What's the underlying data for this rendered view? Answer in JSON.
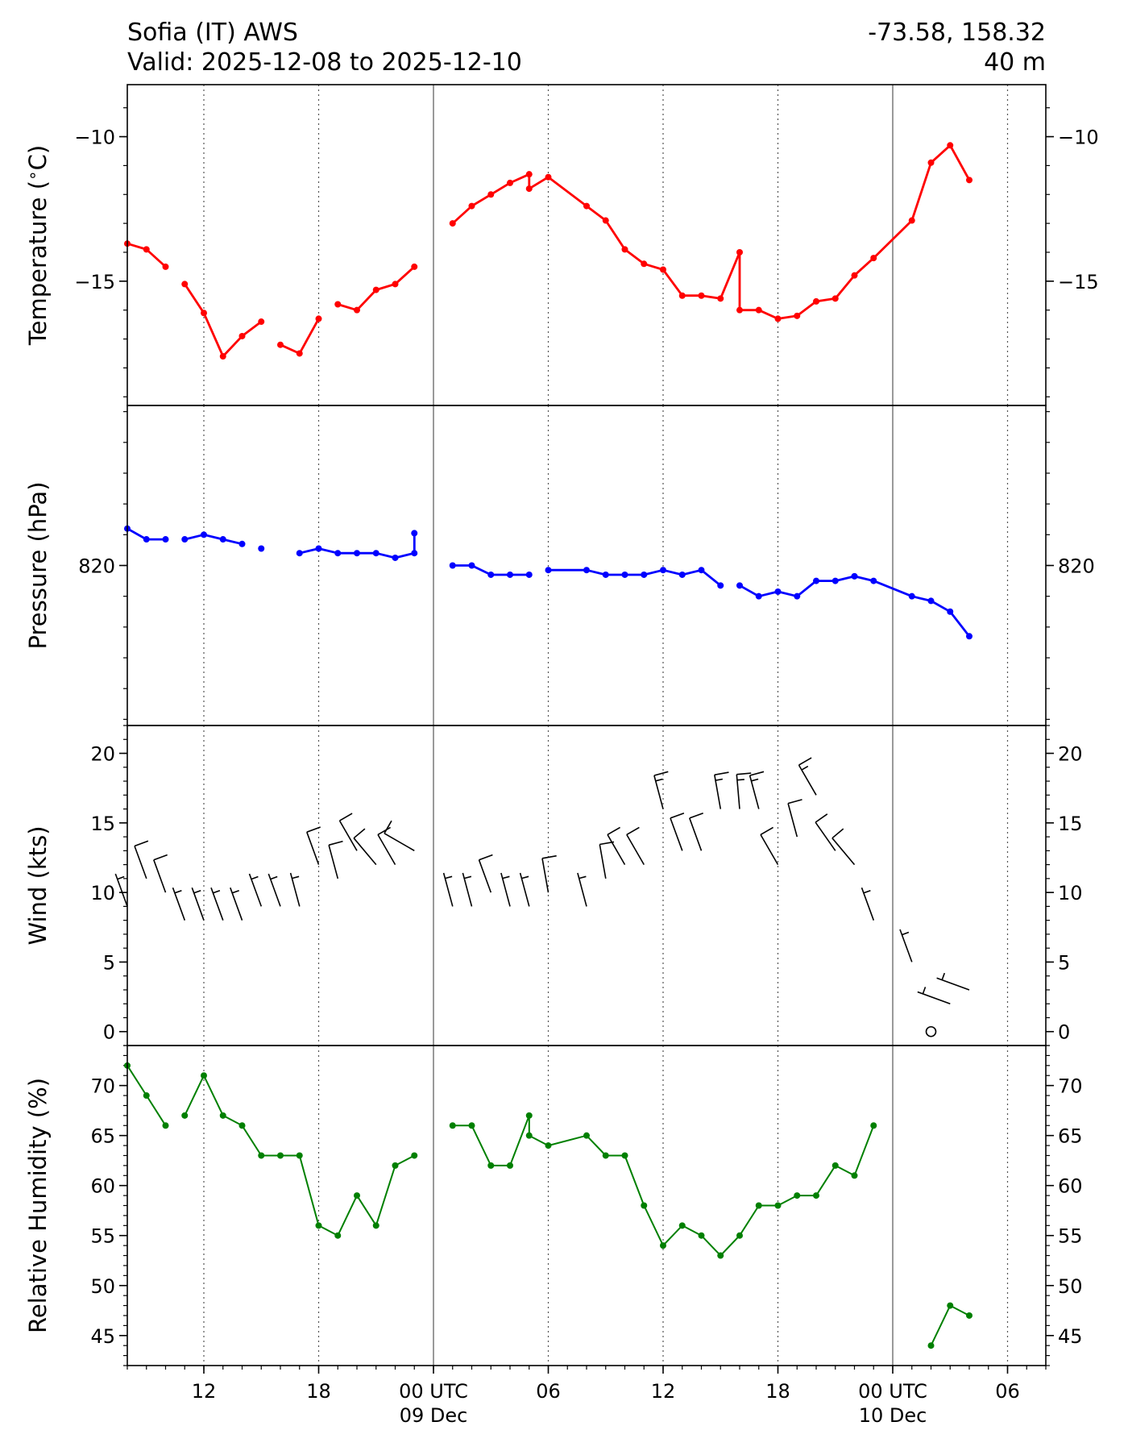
{
  "header": {
    "station": "Sofia (IT) AWS",
    "valid": "Valid: 2025-12-08 to 2025-12-10",
    "coords": "-73.58, 158.32",
    "elevation": "40 m"
  },
  "chart_data": {
    "type": "line",
    "x_axis": {
      "start": "2025-12-08 08:00 UTC",
      "end": "2025-12-10 08:00 UTC",
      "ticks": [
        {
          "time": "2025-12-08 12:00",
          "label": "12",
          "sublabel": ""
        },
        {
          "time": "2025-12-08 18:00",
          "label": "18",
          "sublabel": ""
        },
        {
          "time": "2025-12-09 00:00",
          "label": "00 UTC",
          "sublabel": "09 Dec"
        },
        {
          "time": "2025-12-09 06:00",
          "label": "06",
          "sublabel": ""
        },
        {
          "time": "2025-12-09 12:00",
          "label": "12",
          "sublabel": ""
        },
        {
          "time": "2025-12-09 18:00",
          "label": "18",
          "sublabel": ""
        },
        {
          "time": "2025-12-10 00:00",
          "label": "00 UTC",
          "sublabel": "10 Dec"
        },
        {
          "time": "2025-12-10 06:00",
          "label": "06",
          "sublabel": ""
        }
      ],
      "grid": "dotted at 6-hour ticks, solid at 00 UTC"
    },
    "panels": [
      {
        "name": "temperature",
        "ylabel": "Temperature ($^\\circ$C)",
        "ylim": [
          -19.3,
          -8.2
        ],
        "yticks": [
          -15,
          -10
        ],
        "ytick_labels": [
          "−15",
          "−10"
        ],
        "color": "#ff0000",
        "points": [
          [
            "2025-12-08 08:00",
            -13.7
          ],
          [
            "2025-12-08 09:00",
            -13.9
          ],
          [
            "2025-12-08 10:00",
            -14.5
          ],
          null,
          [
            "2025-12-08 11:00",
            -15.1
          ],
          [
            "2025-12-08 12:00",
            -16.1
          ],
          [
            "2025-12-08 13:00",
            -17.6
          ],
          [
            "2025-12-08 14:00",
            -16.9
          ],
          [
            "2025-12-08 15:00",
            -16.4
          ],
          null,
          [
            "2025-12-08 16:00",
            -17.2
          ],
          [
            "2025-12-08 17:00",
            -17.5
          ],
          [
            "2025-12-08 18:00",
            -16.3
          ],
          null,
          [
            "2025-12-08 19:00",
            -15.8
          ],
          [
            "2025-12-08 20:00",
            -16.0
          ],
          [
            "2025-12-08 21:00",
            -15.3
          ],
          [
            "2025-12-08 22:00",
            -15.1
          ],
          [
            "2025-12-08 23:00",
            -14.5
          ],
          null,
          [
            "2025-12-09 01:00",
            -13.0
          ],
          [
            "2025-12-09 02:00",
            -12.4
          ],
          [
            "2025-12-09 03:00",
            -12.0
          ],
          [
            "2025-12-09 04:00",
            -11.6
          ],
          [
            "2025-12-09 05:00",
            -11.3
          ],
          [
            "2025-12-09 05:00",
            -11.8
          ],
          [
            "2025-12-09 06:00",
            -11.4
          ],
          [
            "2025-12-09 08:00",
            -12.4
          ],
          [
            "2025-12-09 09:00",
            -12.9
          ],
          [
            "2025-12-09 10:00",
            -13.9
          ],
          [
            "2025-12-09 11:00",
            -14.4
          ],
          [
            "2025-12-09 12:00",
            -14.6
          ],
          [
            "2025-12-09 13:00",
            -15.5
          ],
          [
            "2025-12-09 14:00",
            -15.5
          ],
          [
            "2025-12-09 15:00",
            -15.6
          ],
          [
            "2025-12-09 16:00",
            -14.0
          ],
          [
            "2025-12-09 16:00",
            -16.0
          ],
          [
            "2025-12-09 17:00",
            -16.0
          ],
          [
            "2025-12-09 18:00",
            -16.3
          ],
          [
            "2025-12-09 19:00",
            -16.2
          ],
          [
            "2025-12-09 20:00",
            -15.7
          ],
          [
            "2025-12-09 21:00",
            -15.6
          ],
          [
            "2025-12-09 22:00",
            -14.8
          ],
          [
            "2025-12-09 23:00",
            -14.2
          ],
          [
            "2025-12-10 01:00",
            -12.9
          ],
          [
            "2025-12-10 02:00",
            -10.9
          ],
          [
            "2025-12-10 03:00",
            -10.3
          ],
          [
            "2025-12-10 04:00",
            -11.5
          ]
        ]
      },
      {
        "name": "pressure",
        "ylabel": "Pressure (hPa)",
        "ylim": [
          814.8,
          825.2
        ],
        "yticks": [
          820
        ],
        "ytick_labels": [
          "820"
        ],
        "color": "#0000ff",
        "points": [
          [
            "2025-12-08 08:00",
            821.2
          ],
          [
            "2025-12-08 09:00",
            820.85
          ],
          [
            "2025-12-08 10:00",
            820.85
          ],
          null,
          [
            "2025-12-08 11:00",
            820.85
          ],
          [
            "2025-12-08 12:00",
            821.0
          ],
          [
            "2025-12-08 13:00",
            820.85
          ],
          [
            "2025-12-08 14:00",
            820.7
          ],
          null,
          [
            "2025-12-08 15:00",
            820.55
          ],
          null,
          [
            "2025-12-08 17:00",
            820.4
          ],
          [
            "2025-12-08 18:00",
            820.55
          ],
          [
            "2025-12-08 19:00",
            820.4
          ],
          [
            "2025-12-08 20:00",
            820.4
          ],
          [
            "2025-12-08 21:00",
            820.4
          ],
          [
            "2025-12-08 22:00",
            820.25
          ],
          [
            "2025-12-08 23:00",
            820.4
          ],
          [
            "2025-12-08 23:00",
            821.05
          ],
          null,
          [
            "2025-12-09 01:00",
            820.0
          ],
          [
            "2025-12-09 02:00",
            820.0
          ],
          [
            "2025-12-09 03:00",
            819.7
          ],
          [
            "2025-12-09 04:00",
            819.7
          ],
          [
            "2025-12-09 05:00",
            819.7
          ],
          null,
          [
            "2025-12-09 06:00",
            819.85
          ],
          [
            "2025-12-09 08:00",
            819.85
          ],
          [
            "2025-12-09 09:00",
            819.7
          ],
          [
            "2025-12-09 10:00",
            819.7
          ],
          [
            "2025-12-09 11:00",
            819.7
          ],
          [
            "2025-12-09 12:00",
            819.85
          ],
          [
            "2025-12-09 13:00",
            819.7
          ],
          [
            "2025-12-09 14:00",
            819.85
          ],
          [
            "2025-12-09 15:00",
            819.35
          ],
          null,
          [
            "2025-12-09 16:00",
            819.35
          ],
          [
            "2025-12-09 17:00",
            819.0
          ],
          [
            "2025-12-09 18:00",
            819.15
          ],
          [
            "2025-12-09 19:00",
            819.0
          ],
          [
            "2025-12-09 20:00",
            819.5
          ],
          [
            "2025-12-09 21:00",
            819.5
          ],
          [
            "2025-12-09 22:00",
            819.65
          ],
          [
            "2025-12-09 23:00",
            819.5
          ],
          [
            "2025-12-10 01:00",
            819.0
          ],
          [
            "2025-12-10 02:00",
            818.85
          ],
          [
            "2025-12-10 03:00",
            818.5
          ],
          [
            "2025-12-10 04:00",
            817.7
          ]
        ]
      },
      {
        "name": "wind",
        "ylabel": "Wind (kts)",
        "ylim": [
          -1,
          22
        ],
        "yticks": [
          0,
          5,
          10,
          15,
          20
        ],
        "ytick_labels": [
          "0",
          "5",
          "10",
          "15",
          "20"
        ],
        "color": "#000000",
        "barbs": [
          [
            "2025-12-08 08:00",
            9,
            340
          ],
          [
            "2025-12-08 09:00",
            11,
            340
          ],
          [
            "2025-12-08 10:00",
            10,
            340
          ],
          [
            "2025-12-08 11:00",
            8,
            340
          ],
          [
            "2025-12-08 12:00",
            8,
            340
          ],
          [
            "2025-12-08 13:00",
            8,
            340
          ],
          [
            "2025-12-08 14:00",
            8,
            340
          ],
          [
            "2025-12-08 15:00",
            9,
            340
          ],
          [
            "2025-12-08 16:00",
            9,
            340
          ],
          [
            "2025-12-08 17:00",
            9,
            345
          ],
          [
            "2025-12-08 18:00",
            12,
            340
          ],
          [
            "2025-12-08 19:00",
            11,
            345
          ],
          [
            "2025-12-08 20:00",
            13,
            330
          ],
          [
            "2025-12-08 21:00",
            12,
            320
          ],
          [
            "2025-12-08 22:00",
            12,
            330
          ],
          [
            "2025-12-08 23:00",
            13,
            300
          ],
          [
            "2025-12-09 01:00",
            9,
            345
          ],
          [
            "2025-12-09 02:00",
            9,
            345
          ],
          [
            "2025-12-09 03:00",
            10,
            340
          ],
          [
            "2025-12-09 04:00",
            9,
            345
          ],
          [
            "2025-12-09 05:00",
            9,
            345
          ],
          [
            "2025-12-09 06:00",
            10,
            350
          ],
          [
            "2025-12-09 08:00",
            9,
            345
          ],
          [
            "2025-12-09 09:00",
            11,
            350
          ],
          [
            "2025-12-09 10:00",
            12,
            330
          ],
          [
            "2025-12-09 11:00",
            12,
            330
          ],
          [
            "2025-12-09 12:00",
            16,
            345
          ],
          [
            "2025-12-09 13:00",
            13,
            340
          ],
          [
            "2025-12-09 14:00",
            13,
            340
          ],
          [
            "2025-12-09 15:00",
            16,
            350
          ],
          [
            "2025-12-09 16:00",
            16,
            355
          ],
          [
            "2025-12-09 17:00",
            16,
            345
          ],
          [
            "2025-12-09 18:00",
            12,
            330
          ],
          [
            "2025-12-09 19:00",
            14,
            345
          ],
          [
            "2025-12-09 20:00",
            17,
            330
          ],
          [
            "2025-12-09 21:00",
            13,
            325
          ],
          [
            "2025-12-09 22:00",
            12,
            320
          ],
          [
            "2025-12-09 23:00",
            8,
            340
          ],
          [
            "2025-12-10 01:00",
            5,
            340
          ],
          [
            "2025-12-10 02:00",
            0,
            0
          ],
          [
            "2025-12-10 03:00",
            2,
            290
          ],
          [
            "2025-12-10 04:00",
            3,
            290
          ]
        ]
      },
      {
        "name": "humidity",
        "ylabel": "Relative Humidity (%)",
        "ylim": [
          42,
          74
        ],
        "yticks": [
          45,
          50,
          55,
          60,
          65,
          70
        ],
        "ytick_labels": [
          "45",
          "50",
          "55",
          "60",
          "65",
          "70"
        ],
        "color": "#008000",
        "points": [
          [
            "2025-12-08 08:00",
            72
          ],
          [
            "2025-12-08 09:00",
            69
          ],
          [
            "2025-12-08 10:00",
            66
          ],
          null,
          [
            "2025-12-08 11:00",
            67
          ],
          [
            "2025-12-08 12:00",
            71
          ],
          [
            "2025-12-08 13:00",
            67
          ],
          [
            "2025-12-08 14:00",
            66
          ],
          [
            "2025-12-08 15:00",
            63
          ],
          [
            "2025-12-08 16:00",
            63
          ],
          [
            "2025-12-08 17:00",
            63
          ],
          [
            "2025-12-08 18:00",
            56
          ],
          [
            "2025-12-08 19:00",
            55
          ],
          [
            "2025-12-08 20:00",
            59
          ],
          [
            "2025-12-08 21:00",
            56
          ],
          [
            "2025-12-08 22:00",
            62
          ],
          [
            "2025-12-08 23:00",
            63
          ],
          null,
          [
            "2025-12-09 01:00",
            66
          ],
          [
            "2025-12-09 02:00",
            66
          ],
          [
            "2025-12-09 03:00",
            62
          ],
          [
            "2025-12-09 04:00",
            62
          ],
          [
            "2025-12-09 05:00",
            67
          ],
          [
            "2025-12-09 05:00",
            65
          ],
          [
            "2025-12-09 06:00",
            64
          ],
          [
            "2025-12-09 08:00",
            65
          ],
          [
            "2025-12-09 09:00",
            63
          ],
          [
            "2025-12-09 10:00",
            63
          ],
          [
            "2025-12-09 11:00",
            58
          ],
          [
            "2025-12-09 12:00",
            54
          ],
          [
            "2025-12-09 13:00",
            56
          ],
          [
            "2025-12-09 14:00",
            55
          ],
          [
            "2025-12-09 15:00",
            53
          ],
          [
            "2025-12-09 16:00",
            55
          ],
          [
            "2025-12-09 17:00",
            58
          ],
          [
            "2025-12-09 18:00",
            58
          ],
          [
            "2025-12-09 19:00",
            59
          ],
          [
            "2025-12-09 20:00",
            59
          ],
          [
            "2025-12-09 21:00",
            62
          ],
          [
            "2025-12-09 22:00",
            61
          ],
          [
            "2025-12-09 23:00",
            66
          ],
          null,
          [
            "2025-12-10 02:00",
            44
          ],
          [
            "2025-12-10 03:00",
            48
          ],
          [
            "2025-12-10 04:00",
            47
          ]
        ]
      }
    ]
  }
}
